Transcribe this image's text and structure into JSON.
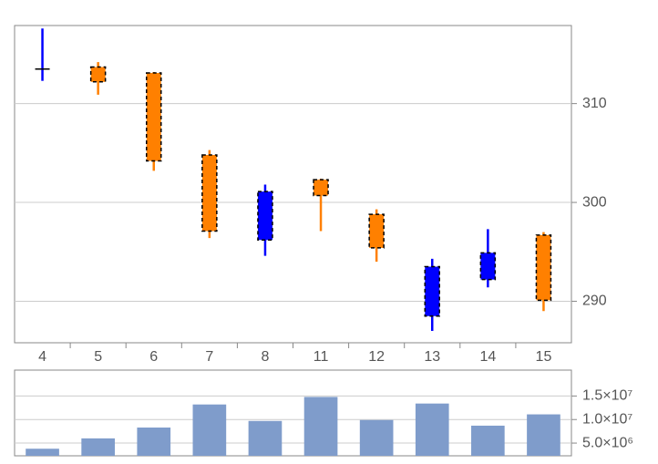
{
  "chart_data": [
    {
      "type": "candlestick",
      "categories": [
        "4",
        "5",
        "6",
        "7",
        "8",
        "11",
        "12",
        "13",
        "14",
        "15"
      ],
      "open": [
        313.5,
        313.7,
        313.1,
        304.8,
        296.2,
        302.3,
        298.8,
        288.5,
        292.2,
        296.7
      ],
      "high": [
        317.6,
        314.2,
        313.2,
        305.3,
        301.8,
        302.4,
        299.3,
        294.3,
        297.3,
        297.0
      ],
      "low": [
        312.3,
        310.9,
        303.2,
        296.4,
        294.6,
        297.1,
        294.0,
        287.0,
        291.4,
        289.0
      ],
      "close": [
        313.5,
        312.2,
        304.2,
        297.1,
        301.1,
        300.7,
        295.4,
        293.5,
        294.9,
        290.1
      ],
      "up_color": "#0000ff",
      "down_color": "#ff8000",
      "ylim": [
        285.8,
        317.9
      ],
      "yticks": [
        290,
        300,
        310
      ],
      "grid": true
    },
    {
      "type": "bar",
      "values": [
        3800000,
        6000000,
        8300000,
        13200000,
        9700000,
        14800000,
        9900000,
        13400000,
        8700000,
        11100000
      ],
      "color": "#7f9ccb",
      "ylim": [
        2300000,
        20500000
      ],
      "yticks": [
        {
          "value": 5000000,
          "label": "5.0×10⁶"
        },
        {
          "value": 10000000,
          "label": "1.0×10⁷"
        },
        {
          "value": 15000000,
          "label": "1.5×10⁷"
        }
      ],
      "grid": true
    }
  ]
}
